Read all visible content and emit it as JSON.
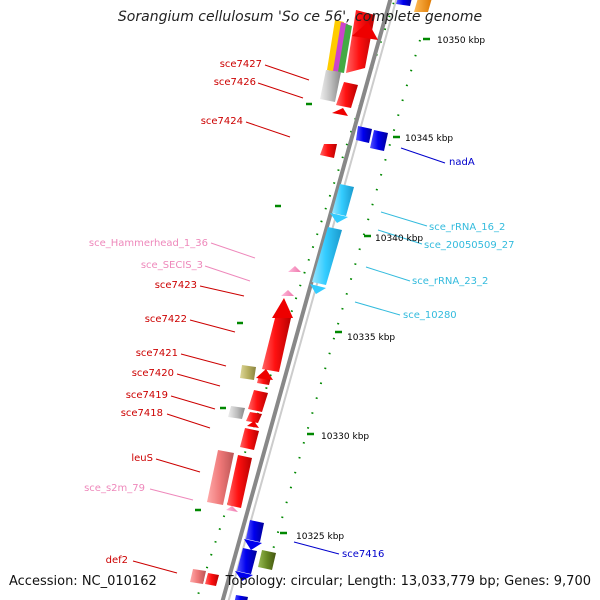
{
  "title": "Sorangium cellulosum 'So ce 56', complete genome",
  "footer": {
    "accession": "Accession: NC_010162",
    "summary": "Topology: circular; Length: 13,033,779 bp; Genes: 9,700"
  },
  "colors": {
    "gene_red": "#ff0000",
    "gene_blue": "#0000ff",
    "rna_cyan": "#33ccff",
    "misc_pink": "#ff88bb",
    "misc_gray": "#bbbbbb",
    "misc_olive": "#b8b060",
    "misc_green": "#668822",
    "misc_salmon": "#ee7777",
    "label_red": "#cc0000",
    "label_blue": "#0000cc",
    "label_cyan": "#33bbdd",
    "label_pink": "#ee88bb",
    "tick_green": "#007700"
  },
  "scale_labels": [
    "10350 kbp",
    "10345 kbp",
    "10340 kbp",
    "10335 kbp",
    "10330 kbp",
    "10325 kbp"
  ],
  "left_labels": [
    {
      "id": "sce7427",
      "text": "sce7427",
      "color": "red"
    },
    {
      "id": "sce7426",
      "text": "sce7426",
      "color": "red"
    },
    {
      "id": "sce7424",
      "text": "sce7424",
      "color": "red"
    },
    {
      "id": "sce-hammerhead-1-36",
      "text": "sce_Hammerhead_1_36",
      "color": "pink"
    },
    {
      "id": "sce-secis-3",
      "text": "sce_SECIS_3",
      "color": "pink"
    },
    {
      "id": "sce7423",
      "text": "sce7423",
      "color": "red"
    },
    {
      "id": "sce7422",
      "text": "sce7422",
      "color": "red"
    },
    {
      "id": "sce7421",
      "text": "sce7421",
      "color": "red"
    },
    {
      "id": "sce7420",
      "text": "sce7420",
      "color": "red"
    },
    {
      "id": "sce7419",
      "text": "sce7419",
      "color": "red"
    },
    {
      "id": "sce7418",
      "text": "sce7418",
      "color": "red"
    },
    {
      "id": "leus",
      "text": "leuS",
      "color": "red"
    },
    {
      "id": "sce-s2m-79",
      "text": "sce_s2m_79",
      "color": "pink"
    },
    {
      "id": "def2",
      "text": "def2",
      "color": "red"
    }
  ],
  "right_labels": [
    {
      "id": "nada",
      "text": "nadA",
      "color": "blue"
    },
    {
      "id": "sce-rrna-16-2",
      "text": "sce_rRNA_16_2",
      "color": "cyan"
    },
    {
      "id": "sce-20050509-27",
      "text": "sce_20050509_27",
      "color": "cyan"
    },
    {
      "id": "sce-rrna-23-2",
      "text": "sce_rRNA_23_2",
      "color": "cyan"
    },
    {
      "id": "sce-10280",
      "text": "sce_10280",
      "color": "cyan"
    },
    {
      "id": "sce7416",
      "text": "sce7416",
      "color": "blue"
    }
  ]
}
